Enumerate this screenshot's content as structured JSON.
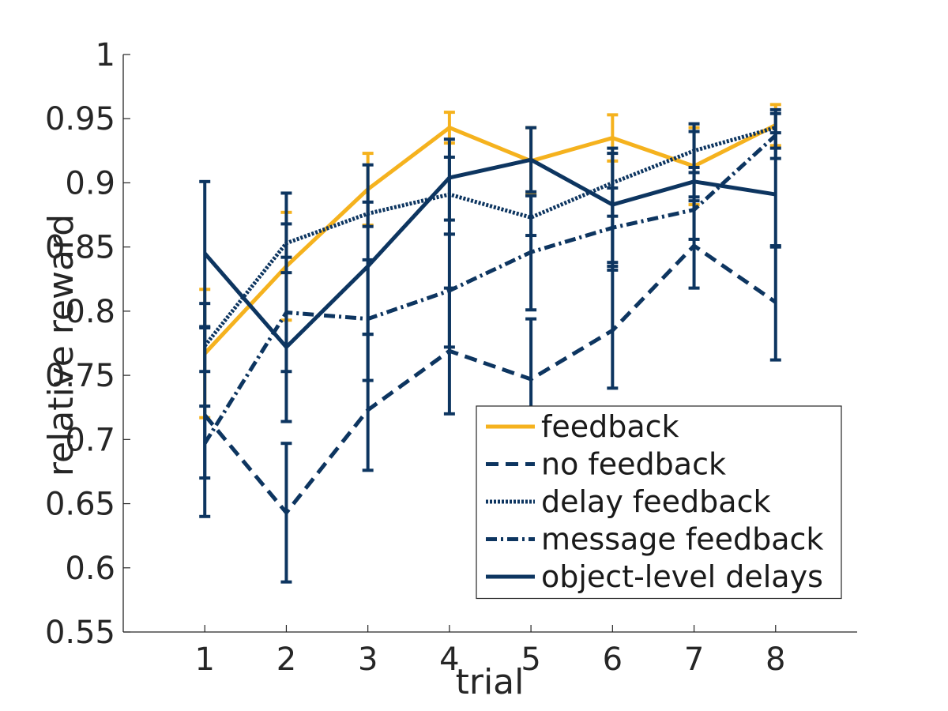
{
  "chart_data": {
    "type": "line",
    "title": "",
    "xlabel": "trial",
    "ylabel": "relative reward",
    "x": [
      1,
      2,
      3,
      4,
      5,
      6,
      7,
      8
    ],
    "xticks": [
      "1",
      "2",
      "3",
      "4",
      "5",
      "6",
      "7",
      "8"
    ],
    "xlim": [
      0,
      9
    ],
    "yticks": [
      "0.55",
      "0.6",
      "0.65",
      "0.7",
      "0.75",
      "0.8",
      "0.85",
      "0.9",
      "0.95",
      "1"
    ],
    "ylim": [
      0.55,
      1.0
    ],
    "grid": false,
    "legend_position": "bottom-right",
    "series": [
      {
        "name": "feedback",
        "color": "#F5B21E",
        "dash": "solid",
        "values": [
          0.767,
          0.835,
          0.895,
          0.943,
          0.917,
          0.935,
          0.913,
          0.945
        ],
        "err_low": [
          0.717,
          0.793,
          0.867,
          0.931,
          0.891,
          0.917,
          0.883,
          0.929
        ],
        "err_high": [
          0.817,
          0.877,
          0.923,
          0.955,
          0.943,
          0.953,
          0.943,
          0.961
        ]
      },
      {
        "name": "no feedback",
        "color": "#0D3560",
        "dash": "dashed",
        "values": [
          0.719,
          0.643,
          0.723,
          0.769,
          0.747,
          0.785,
          0.851,
          0.807
        ],
        "err_low": [
          0.64,
          0.589,
          0.676,
          0.72,
          0.701,
          0.74,
          0.818,
          0.762
        ],
        "err_high": [
          0.806,
          0.697,
          0.782,
          0.818,
          0.794,
          0.835,
          0.886,
          0.851
        ]
      },
      {
        "name": "delay feedback",
        "color": "#0D3560",
        "dash": "dotted",
        "values": [
          0.773,
          0.853,
          0.876,
          0.891,
          0.873,
          0.9,
          0.925,
          0.943
        ],
        "err_low": [
          0.753,
          0.83,
          0.866,
          0.871,
          0.859,
          0.874,
          0.908,
          0.927
        ],
        "err_high": [
          0.788,
          0.868,
          0.885,
          0.92,
          0.89,
          0.923,
          0.94,
          0.957
        ]
      },
      {
        "name": "message feedback",
        "color": "#0D3560",
        "dash": "dashdot",
        "values": [
          0.697,
          0.799,
          0.794,
          0.816,
          0.846,
          0.865,
          0.879,
          0.937
        ],
        "err_low": [
          0.67,
          0.753,
          0.746,
          0.772,
          0.801,
          0.832,
          0.856,
          0.919
        ],
        "err_high": [
          0.726,
          0.842,
          0.84,
          0.86,
          0.89,
          0.896,
          0.912,
          0.954
        ]
      },
      {
        "name": "object-level delays",
        "color": "#0D3560",
        "dash": "solid",
        "values": [
          0.845,
          0.772,
          0.835,
          0.904,
          0.918,
          0.883,
          0.901,
          0.891
        ],
        "err_low": [
          0.787,
          0.714,
          0.782,
          0.86,
          0.893,
          0.838,
          0.889,
          0.85
        ],
        "err_high": [
          0.901,
          0.892,
          0.914,
          0.934,
          0.943,
          0.927,
          0.946,
          0.939
        ]
      }
    ]
  }
}
